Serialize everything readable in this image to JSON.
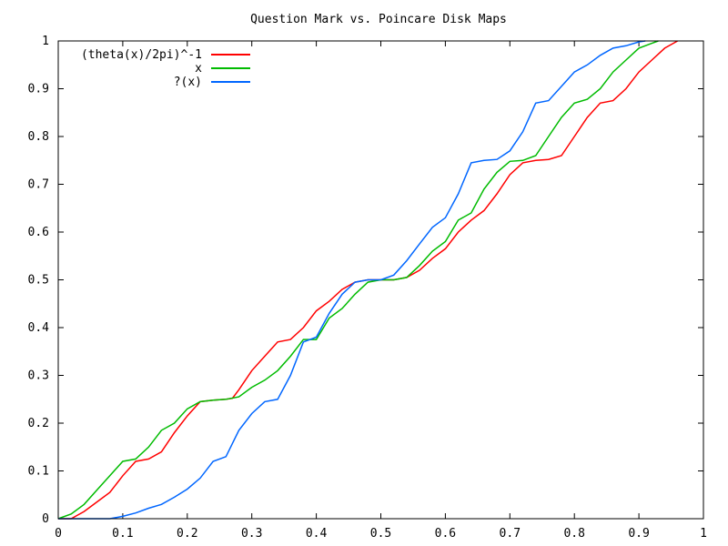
{
  "chart_data": {
    "type": "line",
    "title": "Question Mark vs. Poincare Disk Maps",
    "xlabel": "",
    "ylabel": "",
    "xlim": [
      0,
      1
    ],
    "ylim": [
      0,
      1
    ],
    "x_ticks": [
      "0",
      "0.1",
      "0.2",
      "0.3",
      "0.4",
      "0.5",
      "0.6",
      "0.7",
      "0.8",
      "0.9",
      "1"
    ],
    "y_ticks": [
      "0",
      "0.1",
      "0.2",
      "0.3",
      "0.4",
      "0.5",
      "0.6",
      "0.7",
      "0.8",
      "0.9",
      "1"
    ],
    "grid": false,
    "legend_position": "top-left",
    "series": [
      {
        "name": "(theta(x)/2pi)^-1",
        "color": "#ff0000",
        "x": [
          0.0,
          0.02,
          0.04,
          0.06,
          0.08,
          0.1,
          0.12,
          0.14,
          0.16,
          0.18,
          0.2,
          0.22,
          0.24,
          0.26,
          0.27,
          0.28,
          0.3,
          0.32,
          0.34,
          0.36,
          0.38,
          0.4,
          0.42,
          0.44,
          0.46,
          0.48,
          0.5,
          0.52,
          0.54,
          0.56,
          0.58,
          0.6,
          0.62,
          0.64,
          0.66,
          0.68,
          0.7,
          0.72,
          0.74,
          0.76,
          0.78,
          0.8,
          0.82,
          0.84,
          0.86,
          0.88,
          0.9,
          0.92,
          0.94,
          0.96
        ],
        "y": [
          0.0,
          0.0,
          0.015,
          0.035,
          0.055,
          0.09,
          0.12,
          0.125,
          0.14,
          0.18,
          0.215,
          0.245,
          0.248,
          0.25,
          0.252,
          0.27,
          0.31,
          0.34,
          0.37,
          0.375,
          0.4,
          0.435,
          0.455,
          0.48,
          0.495,
          0.5,
          0.5,
          0.5,
          0.505,
          0.52,
          0.545,
          0.565,
          0.6,
          0.625,
          0.645,
          0.68,
          0.72,
          0.745,
          0.75,
          0.752,
          0.76,
          0.8,
          0.84,
          0.87,
          0.875,
          0.9,
          0.935,
          0.96,
          0.985,
          1.0
        ]
      },
      {
        "name": "x",
        "color": "#00bb00",
        "x": [
          0.0,
          0.02,
          0.04,
          0.06,
          0.08,
          0.1,
          0.12,
          0.14,
          0.16,
          0.18,
          0.2,
          0.22,
          0.24,
          0.26,
          0.28,
          0.3,
          0.32,
          0.34,
          0.36,
          0.38,
          0.4,
          0.42,
          0.44,
          0.46,
          0.48,
          0.5,
          0.52,
          0.54,
          0.56,
          0.58,
          0.6,
          0.62,
          0.64,
          0.66,
          0.68,
          0.7,
          0.72,
          0.74,
          0.76,
          0.78,
          0.8,
          0.82,
          0.84,
          0.86,
          0.88,
          0.9,
          0.92,
          0.93
        ],
        "y": [
          0.0,
          0.01,
          0.03,
          0.06,
          0.09,
          0.12,
          0.125,
          0.15,
          0.185,
          0.2,
          0.23,
          0.245,
          0.248,
          0.25,
          0.255,
          0.275,
          0.29,
          0.31,
          0.34,
          0.375,
          0.375,
          0.42,
          0.44,
          0.47,
          0.495,
          0.5,
          0.5,
          0.505,
          0.53,
          0.56,
          0.58,
          0.625,
          0.64,
          0.69,
          0.725,
          0.748,
          0.75,
          0.76,
          0.8,
          0.84,
          0.87,
          0.878,
          0.9,
          0.935,
          0.96,
          0.985,
          0.995,
          1.0
        ]
      },
      {
        "name": "?(x)",
        "color": "#0066ff",
        "x": [
          0.0,
          0.02,
          0.04,
          0.06,
          0.08,
          0.1,
          0.12,
          0.14,
          0.16,
          0.18,
          0.2,
          0.22,
          0.24,
          0.26,
          0.28,
          0.3,
          0.32,
          0.34,
          0.36,
          0.38,
          0.4,
          0.42,
          0.44,
          0.46,
          0.48,
          0.5,
          0.52,
          0.54,
          0.56,
          0.58,
          0.6,
          0.62,
          0.64,
          0.66,
          0.68,
          0.7,
          0.72,
          0.74,
          0.76,
          0.78,
          0.8,
          0.82,
          0.84,
          0.86,
          0.88,
          0.9,
          0.91
        ],
        "y": [
          0.0,
          0.0,
          0.0,
          0.0,
          0.0,
          0.005,
          0.012,
          0.022,
          0.03,
          0.045,
          0.062,
          0.085,
          0.12,
          0.13,
          0.185,
          0.22,
          0.245,
          0.25,
          0.3,
          0.37,
          0.38,
          0.43,
          0.47,
          0.495,
          0.5,
          0.5,
          0.51,
          0.54,
          0.575,
          0.61,
          0.63,
          0.68,
          0.745,
          0.75,
          0.752,
          0.77,
          0.81,
          0.87,
          0.875,
          0.905,
          0.935,
          0.95,
          0.97,
          0.985,
          0.99,
          0.998,
          1.0
        ]
      }
    ]
  }
}
